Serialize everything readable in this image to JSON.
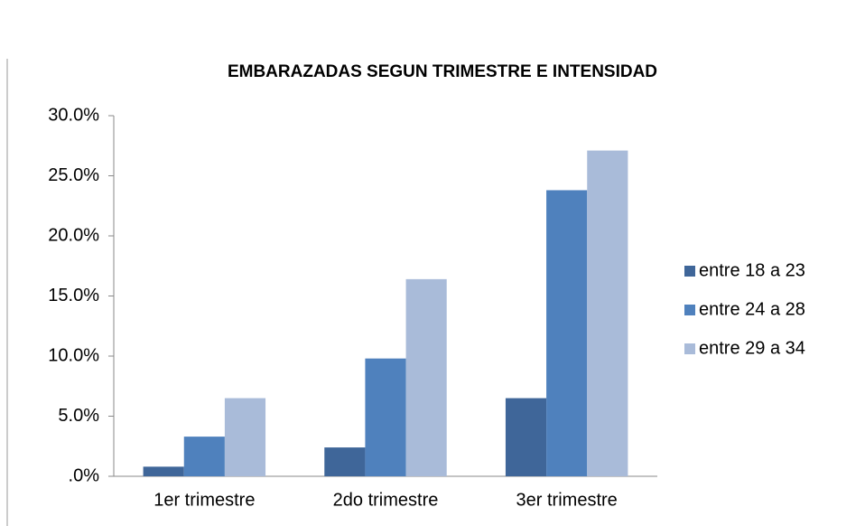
{
  "chart_data": {
    "type": "bar",
    "title": "EMBARAZADAS SEGUN TRIMESTRE E INTENSIDAD",
    "categories": [
      "1er trimestre",
      "2do trimestre",
      "3er trimestre"
    ],
    "series": [
      {
        "name": "entre 18 a 23",
        "color": "#3f6699",
        "values": [
          0.8,
          2.4,
          6.5
        ]
      },
      {
        "name": "entre 24 a 28",
        "color": "#4f81bd",
        "values": [
          3.3,
          9.8,
          23.8
        ]
      },
      {
        "name": "entre 29 a 34",
        "color": "#a9bbd9",
        "values": [
          6.5,
          16.4,
          27.1
        ]
      }
    ],
    "ylim": [
      0,
      30
    ],
    "yticks": [
      {
        "value": 0,
        "label": ".0%"
      },
      {
        "value": 5,
        "label": "5.0%"
      },
      {
        "value": 10,
        "label": "10.0%"
      },
      {
        "value": 15,
        "label": "15.0%"
      },
      {
        "value": 20,
        "label": "20.0%"
      },
      {
        "value": 25,
        "label": "25.0%"
      },
      {
        "value": 30,
        "label": "30.0%"
      }
    ],
    "grid": false,
    "legend": "right"
  }
}
